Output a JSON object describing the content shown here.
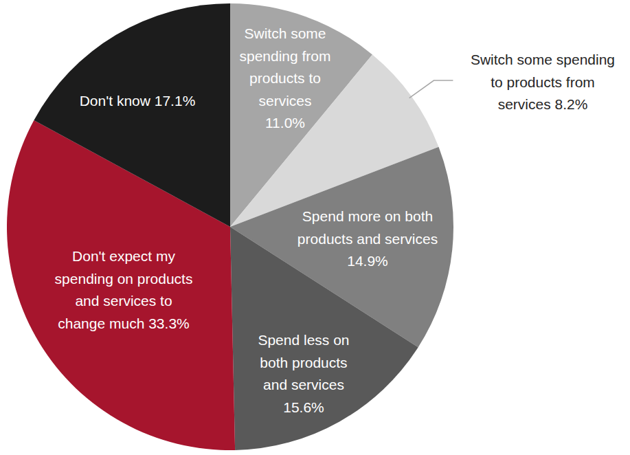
{
  "chart_data": {
    "type": "pie",
    "categories": [
      "Switch some spending from products to services",
      "Switch some spending to products from services",
      "Spend more on both products and services",
      "Spend less on both products and services",
      "Don't expect my spending on products and services to change much",
      "Don't know"
    ],
    "values": [
      11.0,
      8.2,
      14.9,
      15.6,
      33.3,
      17.1
    ],
    "value_labels": [
      "11.0%",
      "8.2%",
      "14.9%",
      "15.6%",
      "33.3%",
      "17.1%"
    ],
    "colors": [
      "#a6a6a6",
      "#d9d9d9",
      "#808080",
      "#595959",
      "#a6152d",
      "#1c1c1c"
    ],
    "data_labels": true
  }
}
